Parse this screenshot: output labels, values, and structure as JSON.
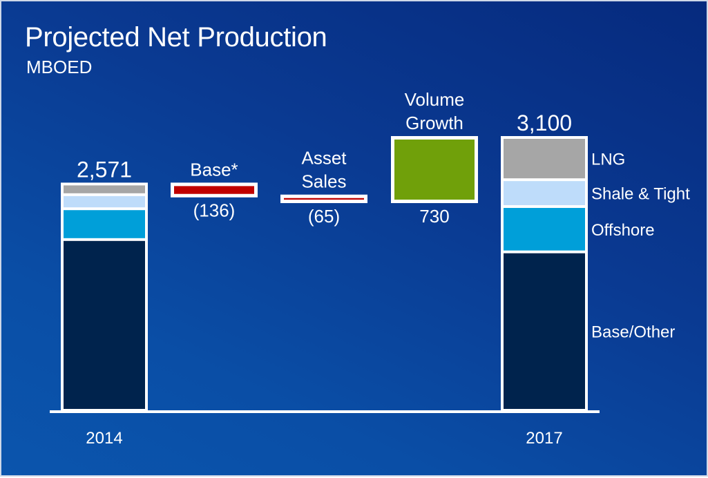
{
  "title": "Projected Net Production",
  "subtitle": "MBOED",
  "chart_data": {
    "type": "bar",
    "subtype": "waterfall-stacked",
    "title": "Projected Net Production",
    "subtitle": "MBOED",
    "xlabel": "",
    "ylabel": "",
    "ylim": [
      0,
      3100
    ],
    "grid": false,
    "legend_position": "right",
    "colors": {
      "LNG": "#a6a6a6",
      "Shale & Tight": "#bedcfa",
      "Offshore": "#009fd9",
      "Base/Other": "#00234d",
      "negative": "#c00000",
      "positive": "#70a00a"
    },
    "segment_order": [
      "Base/Other",
      "Offshore",
      "Shale & Tight",
      "LNG"
    ],
    "bars": [
      {
        "kind": "total",
        "category": "2014",
        "label": "",
        "value": 2571,
        "value_label": "2,571",
        "segments": {
          "Base/Other": 1940,
          "Offshore": 350,
          "Shale & Tight": 160,
          "LNG": 121
        }
      },
      {
        "kind": "delta",
        "category": "",
        "label": "Base*",
        "value": -136,
        "value_label": "(136)"
      },
      {
        "kind": "delta",
        "category": "",
        "label": "Asset Sales",
        "value": -65,
        "value_label": "(65)"
      },
      {
        "kind": "delta",
        "category": "",
        "label": "Volume Growth",
        "value": 730,
        "value_label": "730"
      },
      {
        "kind": "total",
        "category": "2017",
        "label": "",
        "value": 3100,
        "value_label": "3,100",
        "segments": {
          "Base/Other": 1800,
          "Offshore": 515,
          "Shale & Tight": 305,
          "LNG": 480
        }
      }
    ],
    "legend": [
      "LNG",
      "Shale & Tight",
      "Offshore",
      "Base/Other"
    ]
  }
}
